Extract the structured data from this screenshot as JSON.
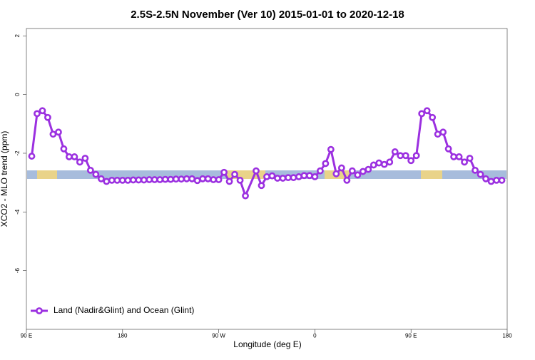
{
  "chart_data": {
    "type": "line",
    "title": "2.5S-2.5N November (Ver 10)   2015-01-01 to 2020-12-18",
    "x_label": "Longitude (deg E)",
    "y_label": "XCO2 - MLO trend (ppm)",
    "xlim": [
      90,
      540
    ],
    "ylim": [
      -8.0,
      2.25
    ],
    "xticks": [
      {
        "value": 90,
        "label": "90 E"
      },
      {
        "value": 180,
        "label": "180"
      },
      {
        "value": 270,
        "label": "90 W"
      },
      {
        "value": 360,
        "label": "0"
      },
      {
        "value": 450,
        "label": "90 E"
      },
      {
        "value": 540,
        "label": "180"
      }
    ],
    "yticks": [
      2,
      0,
      -2,
      -4,
      -6
    ],
    "legend": "bottom-left",
    "x": [
      95,
      100,
      105,
      110,
      115,
      120,
      125,
      130,
      135,
      140,
      145,
      150,
      155,
      160,
      165,
      170,
      175,
      180,
      185,
      190,
      195,
      200,
      205,
      210,
      215,
      220,
      225,
      230,
      235,
      240,
      245,
      250,
      255,
      260,
      265,
      270,
      275,
      280,
      285,
      290,
      295,
      305,
      310,
      315,
      320,
      325,
      330,
      335,
      340,
      345,
      350,
      355,
      360,
      365,
      370,
      375,
      380,
      385,
      390,
      395,
      400,
      405,
      410,
      415,
      420,
      425,
      430,
      435,
      440,
      445,
      450,
      455,
      460,
      465,
      470,
      475,
      480,
      485,
      490,
      495,
      500,
      505,
      510,
      515,
      520,
      525,
      530,
      535
    ],
    "series": [
      {
        "name": "Land (Nadir&Glint) and Ocean (Glint)",
        "color": "#9b30e0",
        "values": [
          -2.1,
          -0.65,
          -0.55,
          -0.78,
          -1.35,
          -1.28,
          -1.85,
          -2.12,
          -2.12,
          -2.3,
          -2.17,
          -2.58,
          -2.72,
          -2.87,
          -2.96,
          -2.92,
          -2.92,
          -2.92,
          -2.92,
          -2.91,
          -2.91,
          -2.91,
          -2.9,
          -2.9,
          -2.9,
          -2.89,
          -2.89,
          -2.88,
          -2.88,
          -2.87,
          -2.87,
          -2.93,
          -2.87,
          -2.87,
          -2.9,
          -2.9,
          -2.65,
          -2.96,
          -2.72,
          -2.92,
          -3.45,
          -2.6,
          -3.1,
          -2.8,
          -2.77,
          -2.85,
          -2.85,
          -2.83,
          -2.83,
          -2.8,
          -2.76,
          -2.76,
          -2.8,
          -2.6,
          -2.35,
          -1.87,
          -2.7,
          -2.5,
          -2.92,
          -2.6,
          -2.74,
          -2.62,
          -2.55,
          -2.4,
          -2.33,
          -2.38,
          -2.3,
          -1.95,
          -2.08,
          -2.08,
          -2.25,
          -2.08,
          -0.65,
          -0.55,
          -0.78,
          -1.35,
          -1.28,
          -1.85,
          -2.12,
          -2.12,
          -2.3,
          -2.17,
          -2.58,
          -2.72,
          -2.87,
          -2.96,
          -2.92,
          -2.92
        ]
      }
    ]
  }
}
